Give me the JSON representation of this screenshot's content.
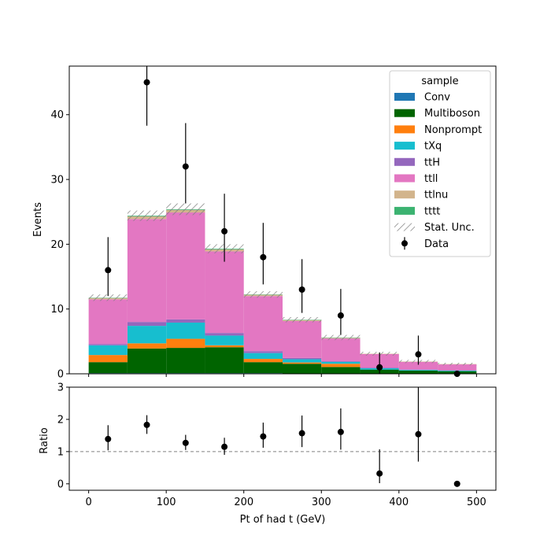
{
  "chart_data": {
    "type": "bar",
    "stacked": true,
    "x_bin_edges": [
      0,
      50,
      100,
      150,
      200,
      250,
      300,
      350,
      400,
      450,
      500
    ],
    "xlabel": "Pt of had t (GeV)",
    "main_panel": {
      "ylabel": "Events",
      "ylim": [
        0,
        47.5
      ],
      "yticks": [
        0,
        10,
        20,
        30,
        40
      ],
      "series": [
        {
          "name": "Conv",
          "color": "#1f77b4",
          "values": [
            0.1,
            0.1,
            0.1,
            0.1,
            0.1,
            0.05,
            0.05,
            0.05,
            0.05,
            0.05
          ]
        },
        {
          "name": "Multiboson",
          "color": "#006400",
          "values": [
            1.7,
            3.8,
            3.9,
            4.0,
            1.7,
            1.5,
            1.0,
            0.6,
            0.45,
            0.35
          ]
        },
        {
          "name": "Nonprompt",
          "color": "#ff7f0e",
          "values": [
            1.1,
            0.8,
            1.4,
            0.3,
            0.5,
            0.2,
            0.5,
            0.0,
            0.0,
            0.0
          ]
        },
        {
          "name": "tXq",
          "color": "#17becf",
          "values": [
            1.5,
            2.7,
            2.5,
            1.5,
            0.9,
            0.5,
            0.3,
            0.2,
            0.1,
            0.1
          ]
        },
        {
          "name": "ttH",
          "color": "#9467bd",
          "values": [
            0.2,
            0.6,
            0.5,
            0.4,
            0.3,
            0.2,
            0.1,
            0.1,
            0.05,
            0.05
          ]
        },
        {
          "name": "ttll",
          "color": "#e377c2",
          "values": [
            6.9,
            15.9,
            16.5,
            12.6,
            8.5,
            5.7,
            3.5,
            2.1,
            1.2,
            0.9
          ]
        },
        {
          "name": "ttlnu",
          "color": "#d2b48c",
          "values": [
            0.2,
            0.4,
            0.4,
            0.3,
            0.2,
            0.15,
            0.1,
            0.05,
            0.05,
            0.05
          ]
        },
        {
          "name": "tttt",
          "color": "#3cb371",
          "values": [
            0.05,
            0.1,
            0.1,
            0.1,
            0.05,
            0.05,
            0.05,
            0.0,
            0.0,
            0.0
          ]
        }
      ],
      "stat_unc": [
        0.5,
        0.8,
        0.9,
        0.7,
        0.5,
        0.4,
        0.4,
        0.3,
        0.25,
        0.2
      ],
      "stat_unc_label": "Stat. Unc.",
      "data": {
        "name": "Data",
        "x": [
          25,
          75,
          125,
          175,
          225,
          275,
          325,
          375,
          425,
          475
        ],
        "y": [
          16,
          45,
          32,
          22,
          18,
          13,
          9,
          1,
          3,
          0
        ],
        "yerr_up": [
          5.1,
          6.8,
          6.7,
          5.8,
          5.3,
          4.7,
          4.1,
          2.3,
          2.9,
          0.0
        ],
        "yerr_down": [
          4.0,
          6.7,
          5.7,
          4.7,
          4.2,
          3.6,
          3.0,
          1.0,
          1.6,
          0.0
        ]
      },
      "legend": {
        "title": "sample",
        "placement": "top-right"
      }
    },
    "ratio_panel": {
      "ylabel": "Ratio",
      "ylim": [
        -0.2,
        3
      ],
      "yticks": [
        0,
        1,
        2,
        3
      ],
      "reference_line": 1,
      "x": [
        25,
        75,
        125,
        175,
        225,
        275,
        325,
        375,
        425,
        475
      ],
      "y": [
        1.39,
        1.83,
        1.27,
        1.15,
        1.47,
        1.57,
        1.61,
        0.32,
        1.54,
        0.0
      ],
      "yerr_up": [
        0.43,
        0.3,
        0.25,
        0.28,
        0.43,
        0.55,
        0.73,
        0.75,
        1.5,
        0.0
      ],
      "yerr_down": [
        0.35,
        0.28,
        0.22,
        0.25,
        0.35,
        0.43,
        0.55,
        0.3,
        0.85,
        0.0
      ]
    },
    "xlim": [
      -25,
      525
    ],
    "xticks": [
      0,
      100,
      200,
      300,
      400,
      500
    ],
    "grid": false
  }
}
